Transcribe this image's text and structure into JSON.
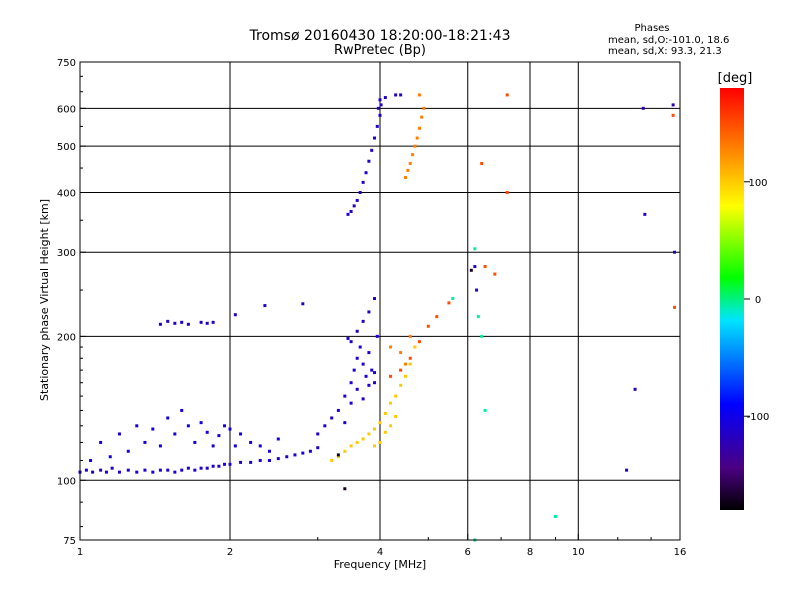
{
  "chart_data": {
    "type": "scatter",
    "title": "Tromsø 20160430 18:20:00-18:21:43",
    "subtitle": "RwPretec (Bp)",
    "stats": {
      "heading": "Phases",
      "line1": "mean, sd,O:-101.0, 18.6",
      "line2": "mean, sd,X:  93.3, 21.3"
    },
    "xlabel": "Frequency [MHz]",
    "ylabel": "Stationary phase Virtual Height [km]",
    "x_scale": "log",
    "y_scale": "log",
    "xlim": [
      1,
      16
    ],
    "ylim": [
      75,
      750
    ],
    "x_ticks": [
      1,
      2,
      4,
      6,
      8,
      10,
      16
    ],
    "x_tick_labels": [
      "1",
      "2",
      "4",
      "6",
      "8",
      "10",
      "16"
    ],
    "y_ticks": [
      75,
      100,
      200,
      300,
      400,
      500,
      600,
      750
    ],
    "y_tick_labels": [
      "75",
      "100",
      "200",
      "300",
      "400",
      "500",
      "600",
      "750"
    ],
    "grid": true,
    "colorbar": {
      "label": "[deg]",
      "range": [
        -180,
        180
      ],
      "ticks": [
        100,
        0,
        -100
      ],
      "tick_labels": [
        "100",
        "0",
        "-100"
      ]
    },
    "series": [
      {
        "phase": -110,
        "points": [
          [
            1.0,
            104
          ],
          [
            1.03,
            105
          ],
          [
            1.06,
            104
          ],
          [
            1.1,
            105
          ],
          [
            1.13,
            104
          ],
          [
            1.16,
            106
          ],
          [
            1.2,
            104
          ],
          [
            1.25,
            105
          ],
          [
            1.3,
            104
          ],
          [
            1.35,
            105
          ],
          [
            1.4,
            104
          ],
          [
            1.45,
            105
          ],
          [
            1.5,
            105
          ],
          [
            1.55,
            104
          ],
          [
            1.6,
            105
          ],
          [
            1.65,
            106
          ],
          [
            1.7,
            105
          ],
          [
            1.75,
            106
          ],
          [
            1.8,
            106
          ],
          [
            1.85,
            107
          ],
          [
            1.9,
            107
          ],
          [
            1.95,
            108
          ],
          [
            2.0,
            108
          ],
          [
            2.1,
            109
          ],
          [
            2.2,
            109
          ],
          [
            2.3,
            110
          ],
          [
            2.4,
            110
          ],
          [
            2.5,
            111
          ],
          [
            2.6,
            112
          ],
          [
            2.7,
            113
          ],
          [
            2.8,
            114
          ],
          [
            2.9,
            115
          ],
          [
            3.0,
            117
          ]
        ]
      },
      {
        "phase": -105,
        "points": [
          [
            1.05,
            110
          ],
          [
            1.1,
            120
          ],
          [
            1.15,
            112
          ],
          [
            1.2,
            125
          ],
          [
            1.25,
            115
          ],
          [
            1.3,
            130
          ],
          [
            1.35,
            120
          ],
          [
            1.4,
            128
          ],
          [
            1.45,
            118
          ],
          [
            1.5,
            135
          ],
          [
            1.55,
            125
          ],
          [
            1.6,
            140
          ],
          [
            1.65,
            130
          ],
          [
            1.7,
            120
          ],
          [
            1.75,
            132
          ],
          [
            1.8,
            126
          ],
          [
            1.85,
            118
          ],
          [
            1.9,
            124
          ],
          [
            1.95,
            130
          ],
          [
            2.0,
            128
          ],
          [
            2.05,
            118
          ],
          [
            2.1,
            125
          ],
          [
            2.2,
            120
          ],
          [
            2.3,
            118
          ],
          [
            2.4,
            115
          ],
          [
            2.5,
            122
          ]
        ]
      },
      {
        "phase": -115,
        "points": [
          [
            1.45,
            212
          ],
          [
            1.5,
            215
          ],
          [
            1.55,
            213
          ],
          [
            1.6,
            214
          ],
          [
            1.65,
            212
          ],
          [
            1.75,
            214
          ],
          [
            1.8,
            213
          ],
          [
            1.85,
            214
          ],
          [
            2.05,
            222
          ],
          [
            2.35,
            232
          ],
          [
            2.8,
            234
          ],
          [
            3.45,
            198
          ],
          [
            3.5,
            195
          ],
          [
            3.6,
            205
          ],
          [
            3.7,
            215
          ],
          [
            3.8,
            225
          ],
          [
            3.9,
            240
          ]
        ]
      },
      {
        "phase": -110,
        "points": [
          [
            3.0,
            125
          ],
          [
            3.1,
            130
          ],
          [
            3.2,
            135
          ],
          [
            3.3,
            140
          ],
          [
            3.4,
            150
          ],
          [
            3.5,
            160
          ],
          [
            3.55,
            170
          ],
          [
            3.6,
            180
          ],
          [
            3.65,
            190
          ],
          [
            3.7,
            175
          ],
          [
            3.75,
            165
          ],
          [
            3.8,
            185
          ],
          [
            3.85,
            170
          ],
          [
            3.9,
            160
          ],
          [
            3.95,
            200
          ],
          [
            3.4,
            132
          ],
          [
            3.5,
            145
          ],
          [
            3.6,
            155
          ],
          [
            3.7,
            148
          ],
          [
            3.8,
            158
          ],
          [
            3.9,
            168
          ]
        ]
      },
      {
        "phase": -115,
        "points": [
          [
            3.45,
            360
          ],
          [
            3.5,
            365
          ],
          [
            3.55,
            375
          ],
          [
            3.6,
            385
          ],
          [
            3.65,
            400
          ],
          [
            3.7,
            420
          ],
          [
            3.75,
            440
          ],
          [
            3.8,
            465
          ],
          [
            3.85,
            490
          ],
          [
            3.9,
            520
          ],
          [
            3.95,
            550
          ],
          [
            4.0,
            580
          ],
          [
            4.02,
            610
          ],
          [
            4.0,
            625
          ],
          [
            3.97,
            600
          ],
          [
            4.1,
            632
          ],
          [
            4.3,
            640
          ],
          [
            4.4,
            640
          ]
        ]
      },
      {
        "phase": 100,
        "points": [
          [
            3.2,
            110
          ],
          [
            3.3,
            112
          ],
          [
            3.4,
            115
          ],
          [
            3.5,
            118
          ],
          [
            3.6,
            120
          ],
          [
            3.7,
            122
          ],
          [
            3.8,
            125
          ],
          [
            3.9,
            128
          ],
          [
            4.0,
            132
          ],
          [
            4.1,
            138
          ],
          [
            4.2,
            145
          ],
          [
            4.3,
            150
          ],
          [
            4.4,
            158
          ],
          [
            4.5,
            165
          ],
          [
            4.6,
            175
          ],
          [
            4.7,
            190
          ],
          [
            3.9,
            118
          ],
          [
            4.0,
            120
          ],
          [
            4.1,
            126
          ],
          [
            4.2,
            130
          ],
          [
            4.3,
            136
          ]
        ]
      },
      {
        "phase": 130,
        "points": [
          [
            4.5,
            430
          ],
          [
            4.55,
            445
          ],
          [
            4.6,
            460
          ],
          [
            4.65,
            480
          ],
          [
            4.7,
            500
          ],
          [
            4.75,
            520
          ],
          [
            4.8,
            545
          ],
          [
            4.85,
            575
          ],
          [
            4.9,
            600
          ],
          [
            4.8,
            640
          ],
          [
            4.2,
            190
          ],
          [
            4.4,
            185
          ],
          [
            4.6,
            200
          ],
          [
            4.5,
            175
          ]
        ]
      },
      {
        "phase": 150,
        "points": [
          [
            4.2,
            165
          ],
          [
            4.4,
            170
          ],
          [
            4.6,
            180
          ],
          [
            4.8,
            195
          ],
          [
            5.0,
            210
          ],
          [
            5.2,
            220
          ],
          [
            5.5,
            235
          ],
          [
            7.2,
            640
          ],
          [
            6.5,
            280
          ],
          [
            6.8,
            270
          ],
          [
            6.4,
            460
          ],
          [
            7.2,
            400
          ],
          [
            15.5,
            580
          ],
          [
            15.6,
            230
          ]
        ]
      },
      {
        "phase": -5,
        "points": [
          [
            6.2,
            305
          ],
          [
            6.3,
            220
          ],
          [
            6.4,
            200
          ],
          [
            6.5,
            140
          ],
          [
            5.6,
            240
          ],
          [
            6.2,
            75
          ],
          [
            9.0,
            84
          ]
        ]
      },
      {
        "phase": -120,
        "points": [
          [
            6.2,
            280
          ],
          [
            6.25,
            250
          ],
          [
            13.5,
            600
          ],
          [
            13.6,
            360
          ],
          [
            12.5,
            105
          ],
          [
            13.0,
            155
          ],
          [
            15.5,
            610
          ],
          [
            15.6,
            300
          ]
        ]
      },
      {
        "phase": -170,
        "points": [
          [
            3.4,
            96
          ],
          [
            3.3,
            113
          ],
          [
            6.1,
            275
          ]
        ]
      }
    ]
  }
}
